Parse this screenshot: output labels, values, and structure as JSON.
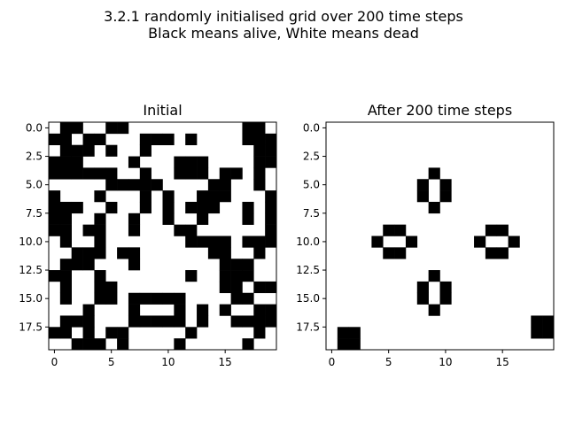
{
  "figure": {
    "suptitle_line1": "3.2.1 randomly initialised grid over 200 time steps",
    "suptitle_line2": "Black means alive, White means dead"
  },
  "chart_data": [
    {
      "type": "heatmap",
      "title": "Initial",
      "xlabel": "",
      "ylabel": "",
      "rows": 20,
      "cols": 20,
      "colors": {
        "alive": "#000000",
        "dead": "#ffffff"
      },
      "grid": false,
      "x_ticks": [
        "0",
        "5",
        "10",
        "15"
      ],
      "x_tick_values": [
        0,
        5,
        10,
        15
      ],
      "y_ticks": [
        "0.0",
        "2.5",
        "5.0",
        "7.5",
        "10.0",
        "12.5",
        "15.0",
        "17.5"
      ],
      "y_tick_values": [
        0,
        2.5,
        5,
        7.5,
        10,
        12.5,
        15,
        17.5
      ],
      "cells": [
        "01100110000000000110",
        "11011000111010000111",
        "01110100100000000011",
        "11100001000111000011",
        "11111100100111011010",
        "00000111110000110010",
        "10001000101001110001",
        "11100100101011100101",
        "11001001001001000101",
        "11011001000110000001",
        "01001000000011110111",
        "00111011000000110010",
        "01110001000000011100",
        "11001000000010011100",
        "01001100000000011011",
        "01001101111100001100",
        "00010001000101010011",
        "01110001111101001111",
        "11010110000010000010",
        "00111010000100000100"
      ]
    },
    {
      "type": "heatmap",
      "title": "After 200 time steps",
      "xlabel": "",
      "ylabel": "",
      "rows": 20,
      "cols": 20,
      "colors": {
        "alive": "#000000",
        "dead": "#ffffff"
      },
      "grid": false,
      "x_ticks": [
        "0",
        "5",
        "10",
        "15"
      ],
      "x_tick_values": [
        0,
        5,
        10,
        15
      ],
      "y_ticks": [
        "0.0",
        "2.5",
        "5.0",
        "7.5",
        "10.0",
        "12.5",
        "15.0",
        "17.5"
      ],
      "y_tick_values": [
        0,
        2.5,
        5,
        7.5,
        10,
        12.5,
        15,
        17.5
      ],
      "cells": [
        "00000000000000000000",
        "00000000000000000000",
        "00000000000000000000",
        "00000000000000000000",
        "00000000010000000000",
        "00000000101000000000",
        "00000000101000000000",
        "00000000010000000000",
        "00000000000000000000",
        "00000110000000110000",
        "00001001000001001000",
        "00000110000000110000",
        "00000000000000000000",
        "00000000010000000000",
        "00000000101000000000",
        "00000000101000000000",
        "00000000010000000000",
        "00000000000000000011",
        "01100000000000000011",
        "01100000000000000000"
      ]
    }
  ]
}
